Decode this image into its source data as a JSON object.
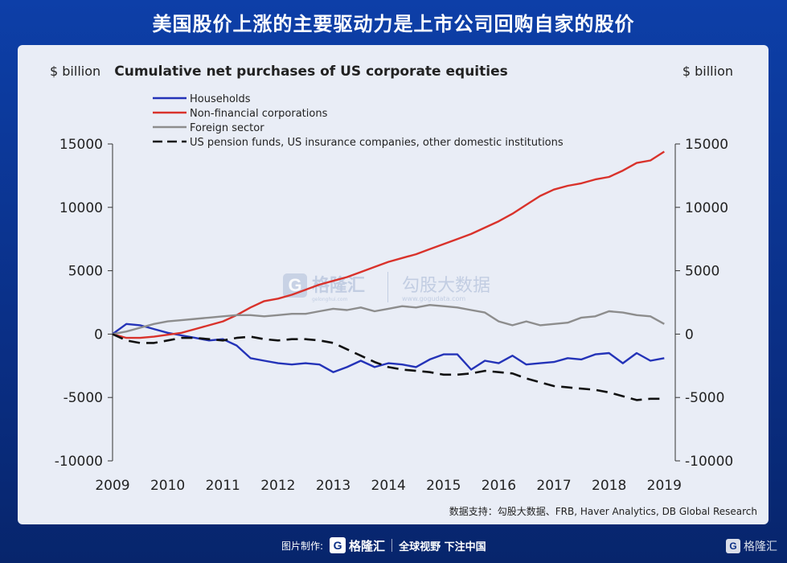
{
  "header": {
    "title": "美国股价上涨的主要驱动力是上市公司回购自家的股价"
  },
  "watermark": {
    "brand": "格隆汇",
    "brand_url": "gelonghui.com",
    "partner": "勾股大数据",
    "partner_url": "www.gogudata.com"
  },
  "source": "数据支持：勾股大数据、FRB, Haver Analytics, DB Global Research",
  "footer": {
    "made_by": "图片制作:",
    "brand": "格隆汇",
    "slogan": "全球视野 下注中国",
    "corner_brand": "格隆汇"
  },
  "colors": {
    "households": "#2433b8",
    "nonfin": "#d9322b",
    "foreign": "#8d8d8d",
    "pension": "#111111"
  },
  "chart_data": {
    "type": "line",
    "title": "Cumulative net purchases of US corporate equities",
    "ylabel_left": "$ billion",
    "ylabel_right": "$ billion",
    "ylim": [
      -10000,
      15000
    ],
    "yticks": [
      15000,
      10000,
      5000,
      0,
      -5000,
      -10000
    ],
    "xlim": [
      2009,
      2019.2
    ],
    "xticks": [
      "2009",
      "2010",
      "2011",
      "2012",
      "2013",
      "2014",
      "2015",
      "2016",
      "2017",
      "2018",
      "2019"
    ],
    "legend_position": "top-left",
    "series": [
      {
        "name": "Households",
        "key": "households",
        "style": "solid",
        "x": [
          2009.0,
          2009.25,
          2009.5,
          2009.75,
          2010.0,
          2010.25,
          2010.5,
          2010.75,
          2011.0,
          2011.25,
          2011.5,
          2011.75,
          2012.0,
          2012.25,
          2012.5,
          2012.75,
          2013.0,
          2013.25,
          2013.5,
          2013.75,
          2014.0,
          2014.25,
          2014.5,
          2014.75,
          2015.0,
          2015.25,
          2015.5,
          2015.75,
          2016.0,
          2016.25,
          2016.5,
          2016.75,
          2017.0,
          2017.25,
          2017.5,
          2017.75,
          2018.0,
          2018.25,
          2018.5,
          2018.75,
          2019.0
        ],
        "values": [
          0,
          800,
          700,
          400,
          100,
          -100,
          -300,
          -500,
          -400,
          -900,
          -1900,
          -2100,
          -2300,
          -2400,
          -2300,
          -2400,
          -3000,
          -2600,
          -2100,
          -2600,
          -2300,
          -2400,
          -2600,
          -2000,
          -1600,
          -1600,
          -2800,
          -2100,
          -2300,
          -1700,
          -2400,
          -2300,
          -2200,
          -1900,
          -2000,
          -1600,
          -1500,
          -2300,
          -1500,
          -2100,
          -1900
        ]
      },
      {
        "name": "Non-financial corporations",
        "key": "nonfin",
        "style": "solid",
        "x": [
          2009.0,
          2009.25,
          2009.5,
          2009.75,
          2010.0,
          2010.25,
          2010.5,
          2010.75,
          2011.0,
          2011.25,
          2011.5,
          2011.75,
          2012.0,
          2012.25,
          2012.5,
          2012.75,
          2013.0,
          2013.25,
          2013.5,
          2013.75,
          2014.0,
          2014.25,
          2014.5,
          2014.75,
          2015.0,
          2015.25,
          2015.5,
          2015.75,
          2016.0,
          2016.25,
          2016.5,
          2016.75,
          2017.0,
          2017.25,
          2017.5,
          2017.75,
          2018.0,
          2018.25,
          2018.5,
          2018.75,
          2019.0
        ],
        "values": [
          0,
          -300,
          -300,
          -200,
          -50,
          100,
          400,
          700,
          1000,
          1500,
          2100,
          2600,
          2800,
          3100,
          3500,
          3900,
          4200,
          4500,
          4900,
          5300,
          5700,
          6000,
          6300,
          6700,
          7100,
          7500,
          7900,
          8400,
          8900,
          9500,
          10200,
          10900,
          11400,
          11700,
          11900,
          12200,
          12400,
          12900,
          13500,
          13700,
          14400
        ]
      },
      {
        "name": "Foreign sector",
        "key": "foreign",
        "style": "solid",
        "x": [
          2009.0,
          2009.25,
          2009.5,
          2009.75,
          2010.0,
          2010.25,
          2010.5,
          2010.75,
          2011.0,
          2011.25,
          2011.5,
          2011.75,
          2012.0,
          2012.25,
          2012.5,
          2012.75,
          2013.0,
          2013.25,
          2013.5,
          2013.75,
          2014.0,
          2014.25,
          2014.5,
          2014.75,
          2015.0,
          2015.25,
          2015.5,
          2015.75,
          2016.0,
          2016.25,
          2016.5,
          2016.75,
          2017.0,
          2017.25,
          2017.5,
          2017.75,
          2018.0,
          2018.25,
          2018.5,
          2018.75,
          2019.0
        ],
        "values": [
          0,
          200,
          500,
          800,
          1000,
          1100,
          1200,
          1300,
          1400,
          1500,
          1500,
          1400,
          1500,
          1600,
          1600,
          1800,
          2000,
          1900,
          2100,
          1800,
          2000,
          2200,
          2100,
          2300,
          2200,
          2100,
          1900,
          1700,
          1000,
          700,
          1000,
          700,
          800,
          900,
          1300,
          1400,
          1800,
          1700,
          1500,
          1400,
          800
        ]
      },
      {
        "name": "US pension funds, US insurance companies, other domestic institutions",
        "key": "pension",
        "style": "dashed",
        "x": [
          2009.0,
          2009.25,
          2009.5,
          2009.75,
          2010.0,
          2010.25,
          2010.5,
          2010.75,
          2011.0,
          2011.25,
          2011.5,
          2011.75,
          2012.0,
          2012.25,
          2012.5,
          2012.75,
          2013.0,
          2013.25,
          2013.5,
          2013.75,
          2014.0,
          2014.25,
          2014.5,
          2014.75,
          2015.0,
          2015.25,
          2015.5,
          2015.75,
          2016.0,
          2016.25,
          2016.5,
          2016.75,
          2017.0,
          2017.25,
          2017.5,
          2017.75,
          2018.0,
          2018.25,
          2018.5,
          2018.75,
          2019.0
        ],
        "values": [
          0,
          -500,
          -700,
          -700,
          -500,
          -300,
          -300,
          -400,
          -500,
          -300,
          -200,
          -400,
          -500,
          -400,
          -400,
          -500,
          -700,
          -1200,
          -1700,
          -2200,
          -2600,
          -2800,
          -2900,
          -3000,
          -3200,
          -3200,
          -3100,
          -2900,
          -3000,
          -3100,
          -3500,
          -3800,
          -4100,
          -4200,
          -4300,
          -4400,
          -4600,
          -4900,
          -5200,
          -5100,
          -5100
        ]
      }
    ]
  }
}
